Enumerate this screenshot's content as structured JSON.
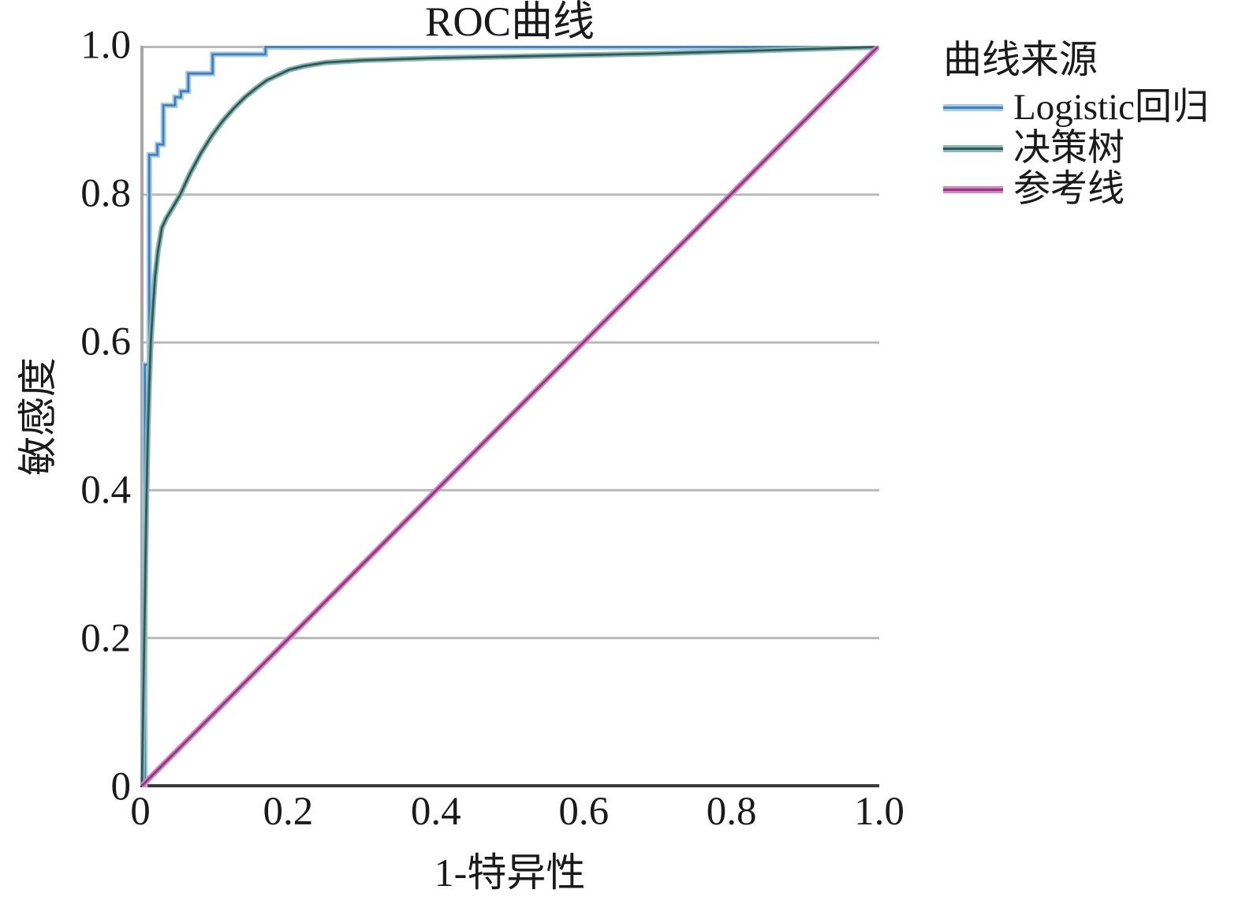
{
  "chart_data": {
    "type": "line",
    "title": "ROC曲线",
    "xlabel": "1-特异性",
    "ylabel": "敏感度",
    "xlim": [
      0,
      1
    ],
    "ylim": [
      0,
      1
    ],
    "xticks": [
      0,
      0.2,
      0.4,
      0.6,
      0.8,
      1.0
    ],
    "yticks": [
      0,
      0.2,
      0.4,
      0.6,
      0.8,
      1.0
    ],
    "xtick_labels": [
      "0",
      "0.2",
      "0.4",
      "0.6",
      "0.8",
      "1.0"
    ],
    "ytick_labels": [
      "0",
      "0.2",
      "0.4",
      "0.6",
      "0.8",
      "1.0"
    ],
    "grid": "horizontal",
    "grid_color": "#b9b9b9",
    "axis_color_left": "#a6a6a6",
    "axis_color_bottom": "#3a3a3a",
    "legend_title": "曲线来源",
    "legend_position": "top-right-outside",
    "series": [
      {
        "name": "Logistic回归",
        "kind": "step",
        "color": "#4180b8",
        "halo": "#a6cbe8",
        "points": [
          [
            0,
            0
          ],
          [
            0.004,
            0
          ],
          [
            0.004,
            0.57
          ],
          [
            0.01,
            0.57
          ],
          [
            0.01,
            0.854
          ],
          [
            0.021,
            0.854
          ],
          [
            0.021,
            0.868
          ],
          [
            0.029,
            0.868
          ],
          [
            0.029,
            0.921
          ],
          [
            0.045,
            0.921
          ],
          [
            0.045,
            0.932
          ],
          [
            0.053,
            0.932
          ],
          [
            0.053,
            0.94
          ],
          [
            0.063,
            0.94
          ],
          [
            0.063,
            0.964
          ],
          [
            0.096,
            0.964
          ],
          [
            0.096,
            0.99
          ],
          [
            0.168,
            0.99
          ],
          [
            0.168,
            1
          ],
          [
            1,
            1
          ]
        ]
      },
      {
        "name": "决策树",
        "kind": "curve",
        "color": "#2a5c5a",
        "halo": "#8fb5b3",
        "points": [
          [
            0,
            0
          ],
          [
            0.004,
            0.25
          ],
          [
            0.006,
            0.38
          ],
          [
            0.008,
            0.48
          ],
          [
            0.01,
            0.545
          ],
          [
            0.012,
            0.6
          ],
          [
            0.015,
            0.648
          ],
          [
            0.018,
            0.69
          ],
          [
            0.022,
            0.725
          ],
          [
            0.027,
            0.755
          ],
          [
            0.033,
            0.768
          ],
          [
            0.042,
            0.783
          ],
          [
            0.052,
            0.8
          ],
          [
            0.065,
            0.828
          ],
          [
            0.08,
            0.856
          ],
          [
            0.095,
            0.88
          ],
          [
            0.11,
            0.9
          ],
          [
            0.125,
            0.917
          ],
          [
            0.14,
            0.932
          ],
          [
            0.155,
            0.944
          ],
          [
            0.17,
            0.955
          ],
          [
            0.185,
            0.962
          ],
          [
            0.2,
            0.969
          ],
          [
            0.22,
            0.974
          ],
          [
            0.25,
            0.979
          ],
          [
            0.3,
            0.982
          ],
          [
            0.4,
            0.985
          ],
          [
            0.5,
            0.987
          ],
          [
            0.6,
            0.989
          ],
          [
            0.7,
            0.991
          ],
          [
            0.8,
            0.994
          ],
          [
            0.9,
            0.997
          ],
          [
            1,
            1
          ]
        ]
      },
      {
        "name": "参考线",
        "kind": "reference",
        "color": "#9b3287",
        "halo": "#cd87be",
        "points": [
          [
            0,
            0
          ],
          [
            1,
            1
          ]
        ]
      }
    ]
  }
}
